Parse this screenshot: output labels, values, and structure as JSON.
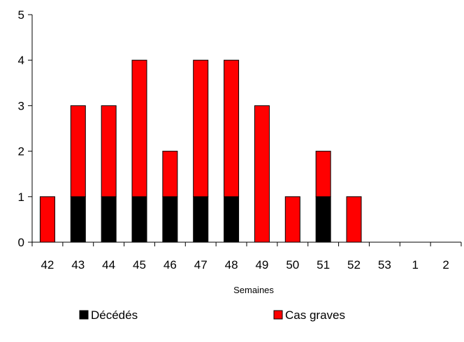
{
  "chart_data": {
    "type": "bar",
    "stacked": true,
    "categories": [
      "42",
      "43",
      "44",
      "45",
      "46",
      "47",
      "48",
      "49",
      "50",
      "51",
      "52",
      "53",
      "1",
      "2"
    ],
    "series": [
      {
        "name": "Décédés",
        "color": "#000000",
        "values": [
          0,
          1,
          1,
          1,
          1,
          1,
          1,
          0,
          0,
          1,
          0,
          0,
          0,
          0
        ]
      },
      {
        "name": "Cas graves",
        "color": "#ff0000",
        "values": [
          1,
          2,
          2,
          3,
          1,
          3,
          3,
          3,
          1,
          1,
          1,
          0,
          0,
          0
        ]
      }
    ],
    "xlabel": "Semaines",
    "ylabel": "",
    "ylim": [
      0,
      5
    ],
    "yticks": [
      0,
      1,
      2,
      3,
      4,
      5
    ],
    "grid": false,
    "legend_position": "bottom"
  }
}
